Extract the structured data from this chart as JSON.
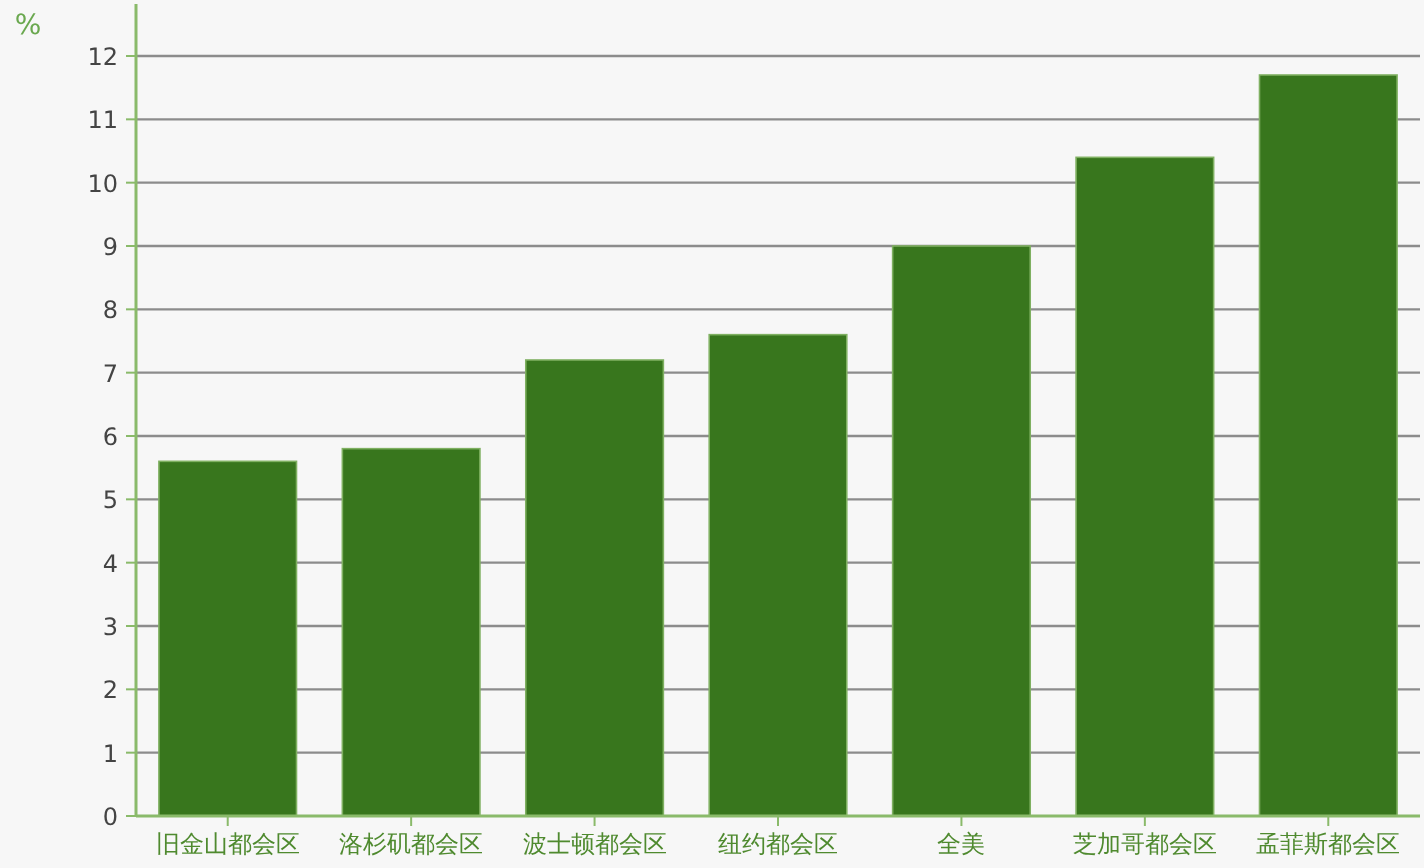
{
  "chart_data": {
    "type": "bar",
    "ylabel": "%",
    "categories": [
      "旧金山都会区",
      "洛杉矶都会区",
      "波士顿都会区",
      "纽约都会区",
      "全美",
      "芝加哥都会区",
      "孟菲斯都会区"
    ],
    "values": [
      5.6,
      5.8,
      7.2,
      7.6,
      9.0,
      10.4,
      11.7
    ],
    "color": "#38761d",
    "ylim": [
      0,
      12
    ],
    "yticks": [
      0,
      1,
      2,
      3,
      4,
      5,
      6,
      7,
      8,
      9,
      10,
      11,
      12
    ],
    "grid": "y"
  }
}
